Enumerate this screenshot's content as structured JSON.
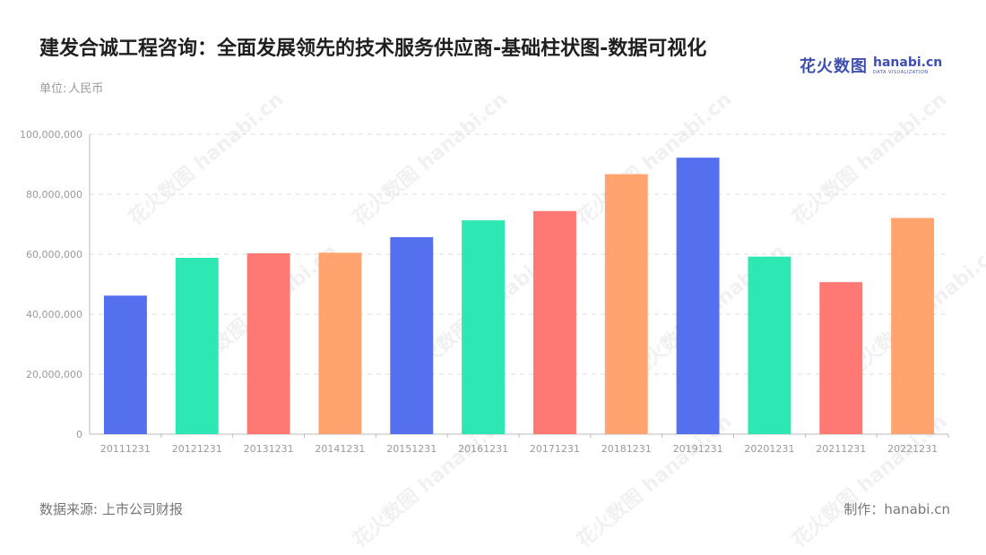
{
  "header": {
    "title": "建发合诚工程咨询：全面发展领先的技术服务供应商-基础柱状图-数据可视化",
    "unit_label": "单位:",
    "unit_value": "人民币"
  },
  "brand": {
    "cn": "花火数图",
    "en": "hanabi.cn",
    "sub": "DATA VISUALIZATION"
  },
  "footer": {
    "source": "数据来源: 上市公司财报",
    "maker": "制作：hanabi.cn"
  },
  "watermark_text": "花火数图 hanabi.cn",
  "chart_data": {
    "type": "bar",
    "categories": [
      "20111231",
      "20121231",
      "20131231",
      "20141231",
      "20151231",
      "20161231",
      "20171231",
      "20181231",
      "20191231",
      "20201231",
      "20211231",
      "20221231"
    ],
    "values": [
      46200000,
      58800000,
      60300000,
      60500000,
      65700000,
      71300000,
      74400000,
      86700000,
      92200000,
      59200000,
      50700000,
      72100000
    ],
    "colors": [
      "#5470ee",
      "#2de8b2",
      "#ff7873",
      "#ffa46e",
      "#5470ee",
      "#2de8b2",
      "#ff7873",
      "#ffa46e",
      "#5470ee",
      "#2de8b2",
      "#ff7873",
      "#ffa46e"
    ],
    "yticks": [
      "0",
      "20,000,000",
      "40,000,000",
      "60,000,000",
      "80,000,000",
      "100,000,000"
    ],
    "ylim": [
      0,
      100000000
    ],
    "grid": true
  }
}
